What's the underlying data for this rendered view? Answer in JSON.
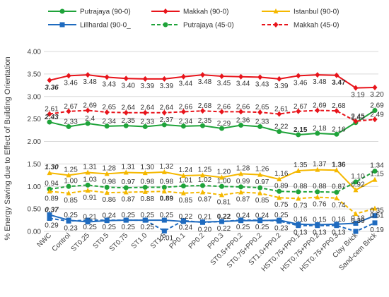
{
  "chart_data": {
    "type": "line",
    "title": "",
    "xlabel": "",
    "ylabel": "% Energy Saving due to Effect  of Building Orientation",
    "ylim": [
      0,
      4
    ],
    "yticks": [
      "0.00",
      "0.50",
      "1.00",
      "1.50",
      "2.00",
      "2.50",
      "3.00",
      "3.50",
      "4.00"
    ],
    "grid": "horizontal",
    "legend_position": "top",
    "categories": [
      "NWC",
      "Control",
      "ST0.25",
      "ST0.5",
      "ST0.75",
      "ST1.0",
      "ST1.5",
      "PP0.1",
      "PP0.2",
      "PP0.3",
      "ST0.5+PP0.2",
      "ST0.75+PP0.2",
      "ST1.0+PP0.2",
      "HST0.75+PP0.1",
      "HST0.75+PP0.2",
      "HST0.75+PP0.3",
      "Clay Brick",
      "Sand-cem Brick"
    ],
    "series": [
      {
        "name": "Putrajaya (90-0)",
        "color": "#1fa33a",
        "marker": "circle",
        "dash": "solid",
        "values": [
          2.43,
          2.33,
          2.4,
          2.34,
          2.35,
          2.33,
          2.37,
          2.34,
          2.35,
          2.29,
          2.36,
          2.33,
          2.22,
          2.15,
          2.18,
          2.16,
          2.42,
          2.69
        ],
        "labels": [
          "2.43",
          "2.33",
          "2.4",
          "2.34",
          "2.35",
          "2.33",
          "2.37",
          "2.34",
          "2.35",
          "2.29",
          "2.36",
          "2.33",
          "2.22",
          "2.15",
          "2.18",
          "2.16",
          "2.42",
          "2.69"
        ]
      },
      {
        "name": "Makkah (90-0)",
        "color": "#e8141b",
        "marker": "diamond",
        "dash": "solid",
        "values": [
          3.36,
          3.46,
          3.48,
          3.43,
          3.4,
          3.39,
          3.39,
          3.44,
          3.48,
          3.45,
          3.44,
          3.43,
          3.39,
          3.46,
          3.48,
          3.47,
          3.19,
          3.2
        ],
        "labels": [
          "3.36",
          "3.46",
          "3.48",
          "3.43",
          "3.40",
          "3.39",
          "3.39",
          "3.44",
          "3.48",
          "3.45",
          "3.44",
          "3.43",
          "3.39",
          "3.46",
          "3.48",
          "3.47",
          "3.19",
          "3.20"
        ]
      },
      {
        "name": "Istanbul (90-0)",
        "color": "#f5b800",
        "marker": "triangle",
        "dash": "solid",
        "values": [
          1.3,
          1.25,
          1.31,
          1.28,
          1.31,
          1.3,
          1.32,
          1.24,
          1.25,
          1.2,
          1.28,
          1.26,
          1.16,
          1.35,
          1.37,
          1.36,
          0.92,
          1.15
        ],
        "labels": [
          "1.30",
          "1.25",
          "1.31",
          "1.28",
          "1.31",
          "1.30",
          "1.32",
          "1.24",
          "1.25",
          "1.20",
          "1.28",
          "1.26",
          "1.16",
          "1.35",
          "1.37",
          "1.36",
          "0.92",
          "1.15"
        ]
      },
      {
        "name": "Lillhardal (90-0_",
        "color": "#1f6bbf",
        "marker": "square",
        "dash": "solid",
        "values": [
          0.37,
          0.25,
          0.21,
          0.24,
          0.25,
          0.25,
          0.25,
          0.22,
          0.21,
          0.22,
          0.24,
          0.24,
          0.25,
          0.16,
          0.15,
          0.16,
          0.18,
          0.35
        ],
        "labels": [
          "0.37",
          "0.25",
          "0.21",
          "0.24",
          "0.25",
          "0.25",
          "0.25",
          "0.22",
          "0.21",
          "0.22",
          "0.24",
          "0.24",
          "0.25",
          "0.16",
          "0.15",
          "0.16",
          "0.18",
          "0.35"
        ]
      },
      {
        "name": "Putrajaya (45-0)",
        "color": "#1fa33a",
        "marker": "circle",
        "dash": "dashed",
        "values": [
          0.94,
          1.0,
          1.03,
          0.98,
          0.97,
          0.98,
          0.98,
          1.01,
          1.02,
          1.0,
          0.99,
          0.97,
          0.89,
          0.88,
          0.88,
          0.87,
          1.1,
          1.34
        ],
        "labels": [
          "0.94",
          "1.00",
          "1.03",
          "0.98",
          "0.97",
          "0.98",
          "0.98",
          "1.01",
          "1.02",
          "1.00",
          "0.99",
          "0.97",
          "0.89",
          "0.88",
          "0.88",
          "0.87",
          "1.10",
          "1.34"
        ]
      },
      {
        "name": "Makkah (45-0)",
        "color": "#e8141b",
        "marker": "diamond",
        "dash": "dashed",
        "values": [
          2.61,
          2.67,
          2.69,
          2.65,
          2.64,
          2.64,
          2.64,
          2.66,
          2.68,
          2.66,
          2.66,
          2.65,
          2.61,
          2.67,
          2.69,
          2.68,
          2.45,
          2.49
        ],
        "labels": [
          "2.61",
          "2.67",
          "2.69",
          "2.65",
          "2.64",
          "2.64",
          "2.64",
          "2.66",
          "2.68",
          "2.66",
          "2.66",
          "2.65",
          "2.61",
          "2.67",
          "2.69",
          "2.68",
          "2.45",
          "2.49"
        ]
      },
      {
        "name": "",
        "color": "#f5b800",
        "marker": "triangle",
        "dash": "dashed",
        "values": [
          0.89,
          0.85,
          0.91,
          0.86,
          0.87,
          0.88,
          0.89,
          0.85,
          0.87,
          0.81,
          0.87,
          0.85,
          0.75,
          0.73,
          0.76,
          0.74,
          0.39,
          0.51
        ],
        "labels": [
          "0.89",
          "0.85",
          "0.91",
          "0.86",
          "0.87",
          "0.88",
          "0.89",
          "0.85",
          "0.87",
          "0.81",
          "0.87",
          "0.85",
          "0.75",
          "0.73",
          "0.76",
          "0.74",
          "0.39",
          "0.51"
        ]
      },
      {
        "name": "",
        "color": "#1f6bbf",
        "marker": "square",
        "dash": "dashed",
        "values": [
          0.29,
          0.23,
          0.25,
          0.25,
          0.25,
          0.25,
          0.01,
          0.24,
          0.2,
          0.22,
          0.25,
          0.25,
          0.23,
          0.13,
          0.13,
          0.13,
          0.0,
          0.19
        ],
        "labels": [
          "0.29",
          "0.23",
          "0.25",
          "0.25",
          "0.25",
          "0.25",
          "0.01",
          "0.24",
          "0.20",
          "0.22",
          "0.25",
          "0.25",
          "0.23",
          "0.13",
          "0.13",
          "0.13",
          "",
          "0.19"
        ]
      }
    ]
  }
}
